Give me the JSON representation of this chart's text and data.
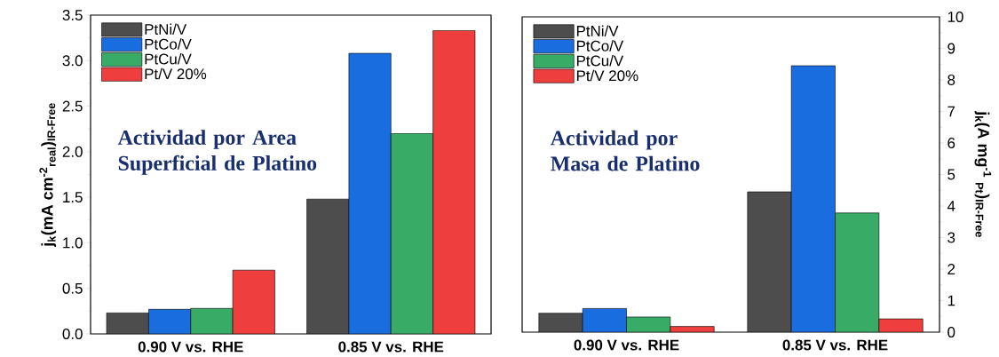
{
  "chart_data": [
    {
      "type": "bar",
      "categories": [
        "0.90 V vs. RHE",
        "0.85 V vs. RHE"
      ],
      "series": [
        {
          "name": "PtNi/V",
          "color": "#4d4d4d",
          "values": [
            0.23,
            1.48
          ]
        },
        {
          "name": "PtCo/V",
          "color": "#1a6ddf",
          "values": [
            0.27,
            3.08
          ]
        },
        {
          "name": "PtCu/V",
          "color": "#38ac66",
          "values": [
            0.28,
            2.2
          ]
        },
        {
          "name": "Pt/V 20%",
          "color": "#ef3e3e",
          "values": [
            0.7,
            3.33
          ]
        }
      ],
      "ylim": [
        0,
        3.5
      ],
      "yticks": [
        {
          "value": 0,
          "label": "0.0"
        },
        0.5,
        {
          "value": 1,
          "label": "1.0"
        },
        1.5,
        {
          "value": 2,
          "label": "2.0"
        },
        2.5,
        {
          "value": 3,
          "label": "3.0"
        },
        3.5
      ],
      "ylabel": "j$_{k}$(mA cm$^{-2}$$_{real}$)$_{IR-Free}$",
      "annotations": [
        "Actividad por Area Superficial de Platino"
      ],
      "legend": "top left"
    },
    {
      "type": "bar",
      "categories": [
        "0.90 V vs. RHE",
        "0.85 V vs. RHE"
      ],
      "series": [
        {
          "name": "PtNi/V",
          "color": "#4d4d4d",
          "values": [
            0.6,
            4.45
          ],
          "axis": "y2"
        },
        {
          "name": "PtCo/V",
          "color": "#1a6ddf",
          "values": [
            0.75,
            8.45
          ],
          "axis": "y2"
        },
        {
          "name": "PtCu/V",
          "color": "#38ac66",
          "values": [
            0.48,
            3.78
          ],
          "axis": "y2"
        },
        {
          "name": "Pt/V 20%",
          "color": "#ef3e3e",
          "values": [
            0.18,
            0.42
          ],
          "axis": "y2"
        }
      ],
      "y2lim": [
        0,
        10
      ],
      "y2ticks": [
        0,
        1,
        2,
        3,
        4,
        5,
        6,
        7,
        8,
        9,
        10
      ],
      "y2label": "j$_{k}$(A mg$^{-1}$ $_{Pt}$)$_{IR-Free}$",
      "annotations": [
        "Actividad por Masa de Platino"
      ],
      "legend": "top left"
    }
  ]
}
